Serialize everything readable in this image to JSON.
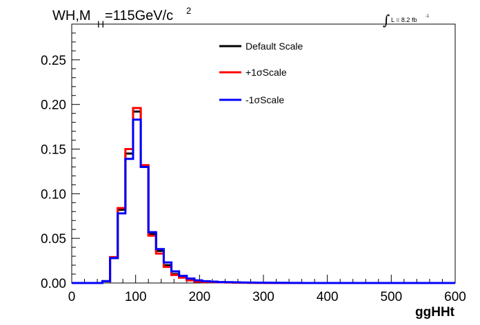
{
  "chart_data": {
    "type": "line",
    "title": {
      "main": "WH,M",
      "subscript": "H",
      "value": "=115GeV/c",
      "superscript": "2"
    },
    "luminosity": {
      "label": "L = 8.2 fb",
      "exponent": "-1"
    },
    "xlabel": "ggHHt",
    "ylabel": "",
    "xlim": [
      0,
      600
    ],
    "ylim": [
      0,
      0.29
    ],
    "x_ticks": [
      "0",
      "100",
      "200",
      "300",
      "400",
      "500",
      "600"
    ],
    "y_ticks": [
      "0.00",
      "0.05",
      "0.10",
      "0.15",
      "0.20",
      "0.25"
    ],
    "grid": false,
    "legend_position": "top-center",
    "bin_edges": [
      0,
      12,
      24,
      36,
      48,
      60,
      72,
      84,
      96,
      108,
      120,
      132,
      144,
      156,
      168,
      180,
      192,
      204,
      216,
      228,
      240,
      252,
      264,
      276,
      288,
      300,
      312,
      324,
      336,
      348,
      360,
      372,
      384,
      396,
      408,
      420,
      432,
      444,
      456,
      468,
      480,
      492,
      504,
      516,
      528,
      540,
      552,
      564,
      576,
      588,
      600
    ],
    "series": [
      {
        "name": "Default Scale",
        "color": "#000000",
        "values": [
          0,
          0,
          0,
          0,
          0.002,
          0.028,
          0.082,
          0.145,
          0.192,
          0.131,
          0.055,
          0.036,
          0.02,
          0.01,
          0.007,
          0.004,
          0.002,
          0.0015,
          0.001,
          0.001,
          0.0008,
          0.0005,
          0.0004,
          0.0003,
          0.0002,
          0.0002,
          0.0001,
          0.0001,
          0,
          0,
          0,
          0,
          0,
          0,
          0,
          0,
          0,
          0,
          0,
          0,
          0,
          0,
          0,
          0,
          0,
          0,
          0,
          0,
          0,
          0
        ]
      },
      {
        "name": "+1σScale",
        "color": "#ff0000",
        "values": [
          0,
          0,
          0,
          0,
          0.002,
          0.029,
          0.084,
          0.15,
          0.196,
          0.132,
          0.053,
          0.033,
          0.018,
          0.009,
          0.006,
          0.003,
          0.0015,
          0.0012,
          0.001,
          0.0008,
          0.0006,
          0.0004,
          0.0003,
          0.0002,
          0.0002,
          0.0001,
          0.0001,
          0,
          0,
          0,
          0,
          0,
          0,
          0,
          0,
          0,
          0,
          0,
          0,
          0,
          0,
          0,
          0,
          0,
          0,
          0,
          0,
          0,
          0,
          0
        ]
      },
      {
        "name": "-1σScale",
        "color": "#0000ff",
        "values": [
          0,
          0,
          0,
          0,
          0.002,
          0.028,
          0.078,
          0.139,
          0.183,
          0.13,
          0.057,
          0.038,
          0.023,
          0.013,
          0.008,
          0.005,
          0.003,
          0.002,
          0.0015,
          0.001,
          0.001,
          0.0008,
          0.0006,
          0.0005,
          0.0004,
          0.0003,
          0.0002,
          0.0002,
          0.0001,
          0.0001,
          0,
          0,
          0,
          0,
          0,
          0,
          0,
          0,
          0,
          0,
          0,
          0,
          0,
          0,
          0,
          0,
          0,
          0,
          0,
          0
        ]
      }
    ]
  }
}
